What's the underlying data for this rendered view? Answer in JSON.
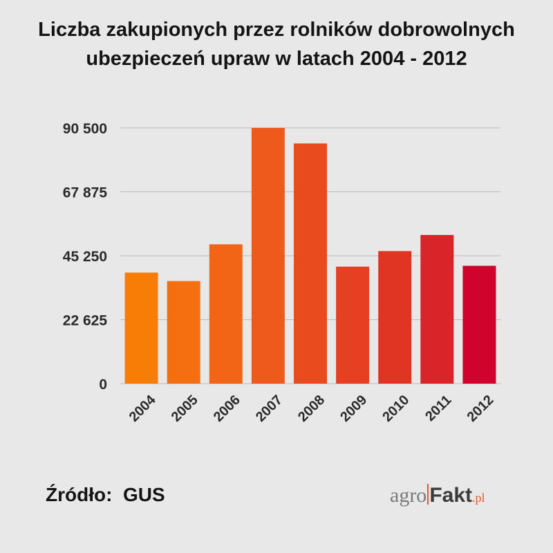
{
  "chart_data": {
    "type": "bar",
    "title_lines": [
      "Liczba zakupionych przez rolników dobrowolnych",
      "ubezpieczeń upraw w latach 2004 - 2012"
    ],
    "xlabel": "",
    "ylabel": "",
    "categories": [
      "2004",
      "2005",
      "2006",
      "2007",
      "2008",
      "2009",
      "2010",
      "2011",
      "2012"
    ],
    "values": [
      39300,
      36300,
      49300,
      90500,
      85000,
      41400,
      46900,
      52600,
      41700
    ],
    "ylim": [
      0,
      90500
    ],
    "yticks": [
      0,
      22625,
      45250,
      67875,
      90500
    ],
    "ytick_labels": [
      "0",
      "22 625",
      "45 250",
      "67 875",
      "90 500"
    ],
    "grid": true,
    "bar_colors": [
      "#f87d07",
      "#f56f11",
      "#f26517",
      "#ee5a1b",
      "#e94a1e",
      "#e54021",
      "#e13524",
      "#d9252a",
      "#d0032c"
    ]
  },
  "footer": {
    "source": "Źródło:  GUS",
    "logo_left": "agro",
    "logo_right": "Fakt",
    "logo_suffix": ".pl"
  }
}
